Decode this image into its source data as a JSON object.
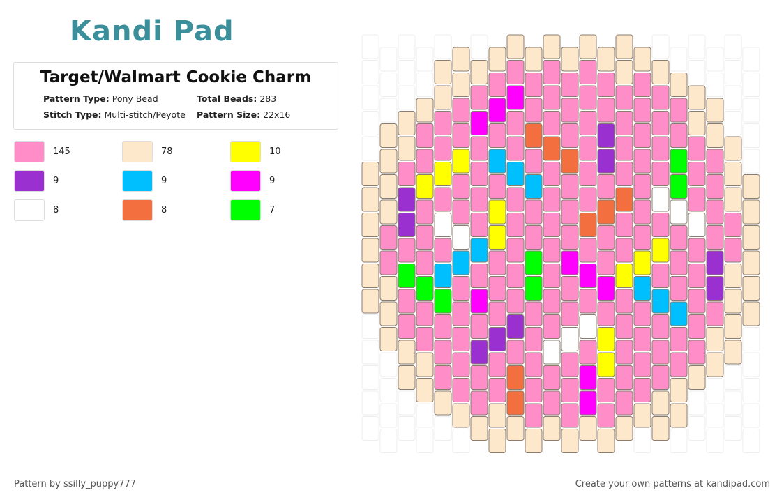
{
  "logo": "Kandi Pad",
  "header": {
    "title": "Target/Walmart Cookie Charm",
    "fields": [
      {
        "label": "Pattern Type:",
        "value": "Pony Bead"
      },
      {
        "label": "Total Beads:",
        "value": "283"
      },
      {
        "label": "Stitch Type:",
        "value": "Multi-stitch/Peyote"
      },
      {
        "label": "Pattern Size:",
        "value": "22x16"
      }
    ]
  },
  "legend": [
    {
      "color": "#ff8ec8",
      "count": 145
    },
    {
      "color": "#fde8cb",
      "count": 78
    },
    {
      "color": "#ffff00",
      "count": 10
    },
    {
      "color": "#9b30d0",
      "count": 9
    },
    {
      "color": "#00bfff",
      "count": 9
    },
    {
      "color": "#ff00ff",
      "count": 9
    },
    {
      "color": "#ffffff",
      "count": 8
    },
    {
      "color": "#f36f40",
      "count": 8
    },
    {
      "color": "#00ff00",
      "count": 7
    }
  ],
  "footer": {
    "left": "Pattern by ssilly_puppy777",
    "right": "Create your own patterns at kandipad.com"
  }
}
